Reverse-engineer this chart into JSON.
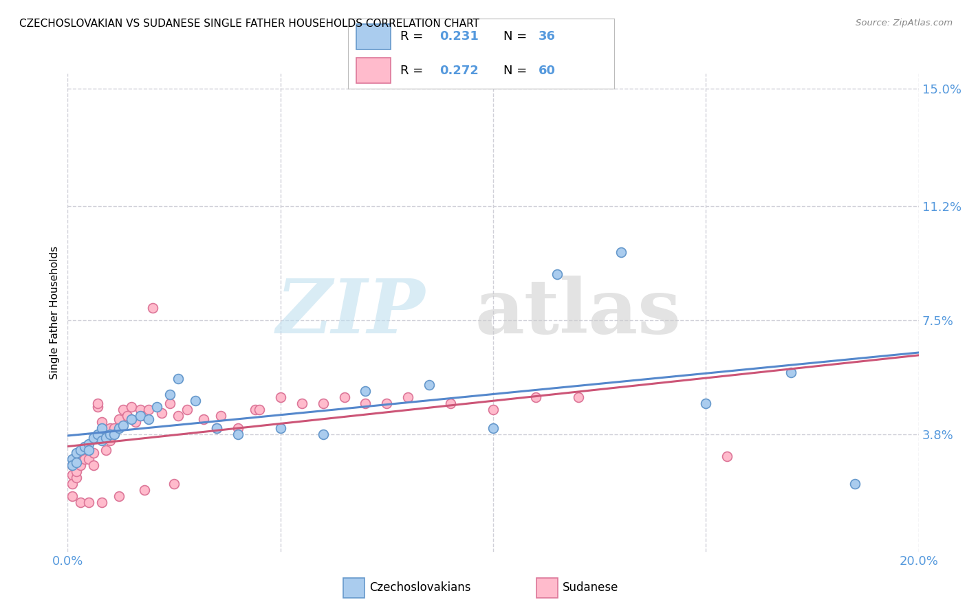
{
  "title": "CZECHOSLOVAKIAN VS SUDANESE SINGLE FATHER HOUSEHOLDS CORRELATION CHART",
  "source": "Source: ZipAtlas.com",
  "ylabel": "Single Father Households",
  "xlim": [
    0.0,
    0.2
  ],
  "ylim": [
    0.0,
    0.155
  ],
  "yticks": [
    0.038,
    0.075,
    0.112,
    0.15
  ],
  "ytick_labels": [
    "3.8%",
    "7.5%",
    "11.2%",
    "15.0%"
  ],
  "xticks": [
    0.0,
    0.05,
    0.1,
    0.15,
    0.2
  ],
  "xtick_labels": [
    "0.0%",
    "",
    "",
    "",
    "20.0%"
  ],
  "background_color": "#ffffff",
  "grid_color": "#d0d0d8",
  "czech_color": "#aaccee",
  "czech_edge_color": "#6699cc",
  "czech_line_color": "#5588cc",
  "sudanese_color": "#ffbbcc",
  "sudanese_edge_color": "#dd7799",
  "sudanese_line_color": "#cc5577",
  "axis_color": "#5599dd",
  "R_czech": "0.231",
  "N_czech": "36",
  "R_sudanese": "0.272",
  "N_sudanese": "60",
  "czech_scatter_x": [
    0.001,
    0.001,
    0.002,
    0.002,
    0.003,
    0.004,
    0.005,
    0.005,
    0.006,
    0.007,
    0.008,
    0.008,
    0.009,
    0.01,
    0.011,
    0.012,
    0.013,
    0.015,
    0.017,
    0.019,
    0.021,
    0.024,
    0.026,
    0.03,
    0.035,
    0.04,
    0.05,
    0.06,
    0.07,
    0.085,
    0.1,
    0.115,
    0.13,
    0.15,
    0.17,
    0.185
  ],
  "czech_scatter_y": [
    0.03,
    0.028,
    0.032,
    0.029,
    0.033,
    0.034,
    0.035,
    0.033,
    0.037,
    0.038,
    0.036,
    0.04,
    0.037,
    0.038,
    0.038,
    0.04,
    0.041,
    0.043,
    0.044,
    0.043,
    0.047,
    0.051,
    0.056,
    0.049,
    0.04,
    0.038,
    0.04,
    0.038,
    0.052,
    0.054,
    0.04,
    0.09,
    0.097,
    0.048,
    0.058,
    0.022
  ],
  "sudanese_scatter_x": [
    0.001,
    0.001,
    0.001,
    0.002,
    0.002,
    0.002,
    0.003,
    0.003,
    0.004,
    0.004,
    0.005,
    0.005,
    0.006,
    0.006,
    0.007,
    0.007,
    0.008,
    0.008,
    0.009,
    0.01,
    0.01,
    0.011,
    0.012,
    0.013,
    0.014,
    0.015,
    0.016,
    0.017,
    0.018,
    0.019,
    0.02,
    0.022,
    0.024,
    0.026,
    0.028,
    0.032,
    0.036,
    0.04,
    0.044,
    0.05,
    0.06,
    0.07,
    0.08,
    0.09,
    0.1,
    0.11,
    0.12,
    0.003,
    0.005,
    0.008,
    0.012,
    0.018,
    0.025,
    0.035,
    0.045,
    0.055,
    0.065,
    0.075,
    0.155,
    0.001
  ],
  "sudanese_scatter_y": [
    0.025,
    0.022,
    0.028,
    0.024,
    0.026,
    0.03,
    0.032,
    0.028,
    0.03,
    0.034,
    0.03,
    0.033,
    0.028,
    0.032,
    0.047,
    0.048,
    0.038,
    0.042,
    0.033,
    0.036,
    0.04,
    0.04,
    0.043,
    0.046,
    0.044,
    0.047,
    0.042,
    0.046,
    0.044,
    0.046,
    0.079,
    0.045,
    0.048,
    0.044,
    0.046,
    0.043,
    0.044,
    0.04,
    0.046,
    0.05,
    0.048,
    0.048,
    0.05,
    0.048,
    0.046,
    0.05,
    0.05,
    0.016,
    0.016,
    0.016,
    0.018,
    0.02,
    0.022,
    0.04,
    0.046,
    0.048,
    0.05,
    0.048,
    0.031,
    0.018
  ]
}
